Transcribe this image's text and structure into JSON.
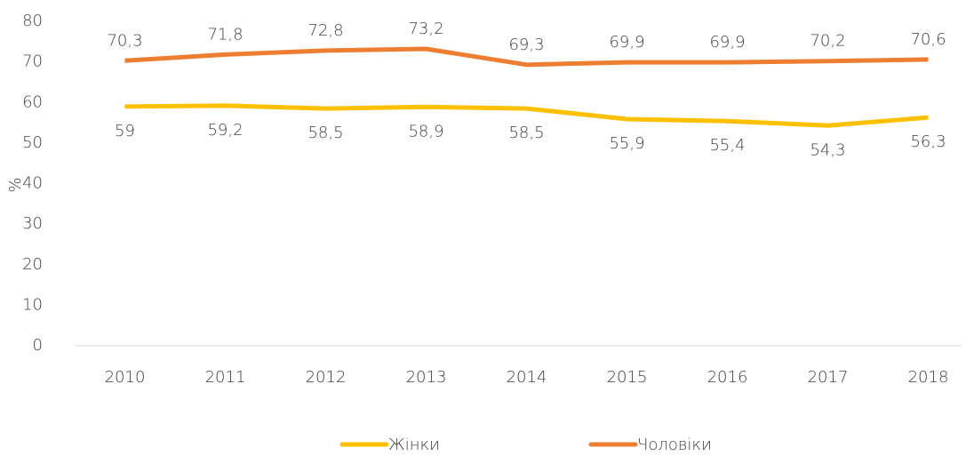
{
  "chart_data": {
    "type": "line",
    "y_label": "%",
    "categories": [
      "2010",
      "2011",
      "2012",
      "2013",
      "2014",
      "2015",
      "2016",
      "2017",
      "2018"
    ],
    "series": [
      {
        "name": "Жінки",
        "color": "#ffc000",
        "values": [
          59,
          59.2,
          58.5,
          58.9,
          58.5,
          55.9,
          55.4,
          54.3,
          56.3
        ],
        "value_labels": [
          "59",
          "59,2",
          "58,5",
          "58,9",
          "58,5",
          "55,9",
          "55,4",
          "54,3",
          "56,3"
        ]
      },
      {
        "name": "Чоловіки",
        "color": "#ed7d31",
        "values": [
          70.3,
          71.8,
          72.8,
          73.2,
          69.3,
          69.9,
          69.9,
          70.2,
          70.6
        ],
        "value_labels": [
          "70,3",
          "71,8",
          "72,8",
          "73,2",
          "69,3",
          "69,9",
          "69,9",
          "70,2",
          "70,6"
        ]
      }
    ],
    "ylim": [
      0,
      80
    ],
    "yticks": [
      0,
      10,
      20,
      30,
      40,
      50,
      60,
      70,
      80
    ],
    "grid": false,
    "legend": "bottom"
  }
}
